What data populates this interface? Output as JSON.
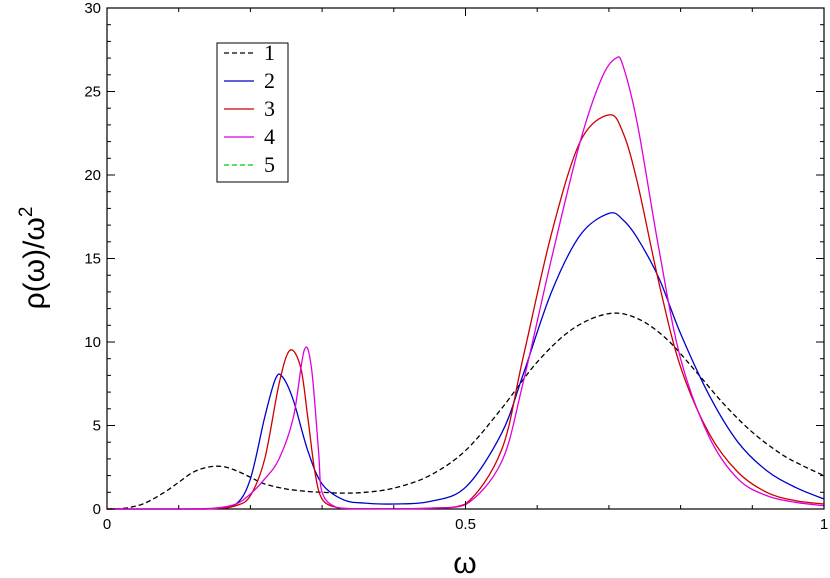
{
  "chart_data": {
    "type": "line",
    "xlabel": "ω",
    "ylabel": "ρ(ω)/ω",
    "ylabel_superscript": "2",
    "xlim": [
      0,
      1
    ],
    "ylim": [
      0,
      30
    ],
    "grid": false,
    "legend_position": "top-left",
    "x_ticks": [
      {
        "value": 0,
        "label": "0"
      },
      {
        "value": 0.5,
        "label": "0.5"
      },
      {
        "value": 1,
        "label": "1"
      }
    ],
    "y_ticks": [
      {
        "value": 0,
        "label": "0"
      },
      {
        "value": 5,
        "label": "5"
      },
      {
        "value": 10,
        "label": "10"
      },
      {
        "value": 15,
        "label": "15"
      },
      {
        "value": 20,
        "label": "20"
      },
      {
        "value": 25,
        "label": "25"
      },
      {
        "value": 30,
        "label": "30"
      }
    ],
    "series": [
      {
        "name": "1",
        "color": "#000000",
        "dashed": true,
        "x": [
          0,
          0.02,
          0.05,
          0.08,
          0.1,
          0.12,
          0.14,
          0.16,
          0.18,
          0.2,
          0.22,
          0.25,
          0.28,
          0.3,
          0.33,
          0.36,
          0.4,
          0.45,
          0.5,
          0.55,
          0.6,
          0.65,
          0.7,
          0.74,
          0.78,
          0.82,
          0.86,
          0.9,
          0.94,
          0.97,
          1.0
        ],
        "y": [
          0,
          0.02,
          0.3,
          1.0,
          1.6,
          2.2,
          2.5,
          2.55,
          2.3,
          1.9,
          1.5,
          1.2,
          1.05,
          1.0,
          0.95,
          1.0,
          1.25,
          2.0,
          3.5,
          6.0,
          8.8,
          10.8,
          11.7,
          11.4,
          10.2,
          8.3,
          6.3,
          4.6,
          3.3,
          2.6,
          2.0
        ]
      },
      {
        "name": "2",
        "color": "#0000cc",
        "dashed": false,
        "x": [
          0,
          0.1,
          0.15,
          0.18,
          0.2,
          0.22,
          0.235,
          0.245,
          0.26,
          0.28,
          0.3,
          0.33,
          0.36,
          0.4,
          0.45,
          0.5,
          0.55,
          0.58,
          0.62,
          0.66,
          0.7,
          0.72,
          0.74,
          0.77,
          0.8,
          0.84,
          0.88,
          0.92,
          0.96,
          1.0
        ],
        "y": [
          0,
          0,
          0.02,
          0.3,
          1.8,
          5.5,
          7.8,
          7.9,
          6.5,
          3.5,
          1.5,
          0.55,
          0.35,
          0.3,
          0.45,
          1.3,
          4.5,
          8.0,
          13.0,
          16.4,
          17.7,
          17.3,
          16.2,
          13.8,
          10.5,
          6.8,
          4.0,
          2.3,
          1.3,
          0.6
        ]
      },
      {
        "name": "3",
        "color": "#cc0000",
        "dashed": false,
        "x": [
          0,
          0.1,
          0.15,
          0.18,
          0.2,
          0.22,
          0.24,
          0.255,
          0.27,
          0.28,
          0.29,
          0.3,
          0.32,
          0.35,
          0.4,
          0.45,
          0.5,
          0.55,
          0.58,
          0.62,
          0.66,
          0.7,
          0.72,
          0.74,
          0.77,
          0.8,
          0.84,
          0.88,
          0.92,
          0.96,
          1.0
        ],
        "y": [
          0,
          0,
          0.02,
          0.2,
          0.8,
          3.0,
          7.5,
          9.5,
          8.5,
          5.5,
          2.2,
          0.6,
          0.1,
          0.02,
          0.02,
          0.05,
          0.3,
          3.5,
          9.0,
          16.5,
          22.0,
          23.6,
          22.5,
          19.5,
          13.5,
          8.5,
          4.5,
          2.2,
          1.0,
          0.5,
          0.3
        ]
      },
      {
        "name": "4",
        "color": "#dd00dd",
        "dashed": false,
        "x": [
          0,
          0.1,
          0.15,
          0.18,
          0.2,
          0.22,
          0.24,
          0.26,
          0.275,
          0.285,
          0.295,
          0.3,
          0.32,
          0.35,
          0.4,
          0.45,
          0.5,
          0.55,
          0.58,
          0.62,
          0.66,
          0.69,
          0.71,
          0.72,
          0.74,
          0.77,
          0.8,
          0.84,
          0.88,
          0.92,
          0.96,
          1.0
        ],
        "y": [
          0,
          0,
          0.05,
          0.3,
          0.9,
          1.8,
          3.0,
          5.5,
          9.5,
          8.5,
          3.5,
          1.0,
          0.1,
          0.02,
          0.02,
          0.05,
          0.25,
          2.8,
          7.5,
          15.0,
          22.0,
          25.8,
          27.0,
          26.5,
          23.0,
          15.5,
          9.0,
          4.3,
          1.8,
          0.8,
          0.4,
          0.2
        ]
      },
      {
        "name": "5",
        "color": "#00cc00",
        "dashed": true,
        "x": [],
        "y": []
      }
    ]
  }
}
